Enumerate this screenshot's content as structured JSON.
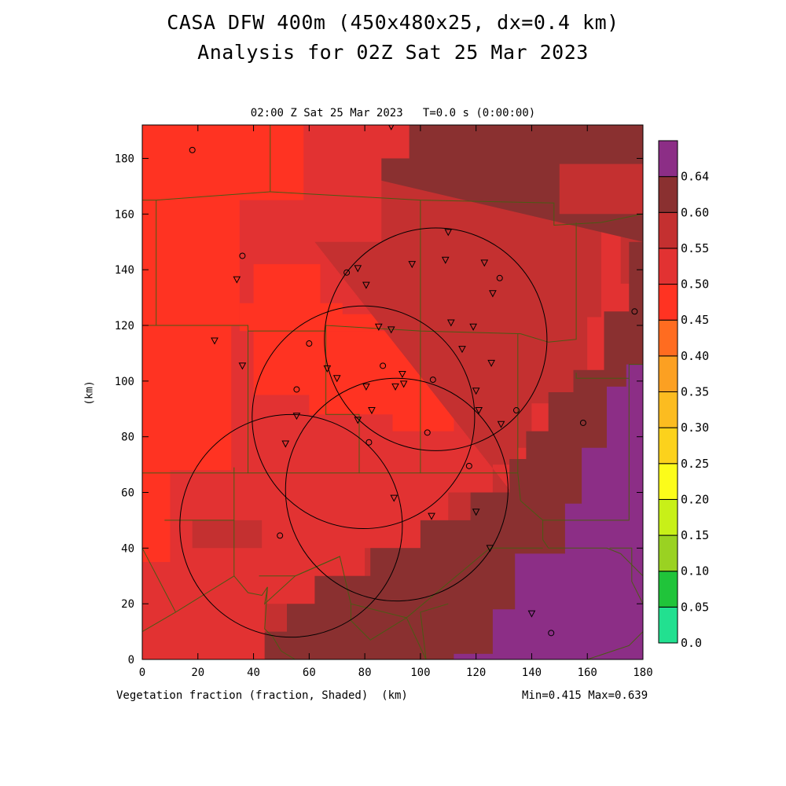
{
  "title_line1": "CASA DFW 400m (450x480x25, dx=0.4 km)",
  "title_line2": "Analysis for 02Z Sat 25 Mar 2023",
  "subtitle": "02:00 Z Sat 25 Mar 2023   T=0.0 s (0:00:00)",
  "footer_left": "Vegetation fraction (fraction, Shaded)  (km)",
  "footer_right": "Min=0.415 Max=0.639",
  "chart_data": {
    "type": "heatmap",
    "xlabel": "(km)",
    "ylabel": "(km)",
    "xlim": [
      0,
      180
    ],
    "ylim": [
      0,
      192
    ],
    "xticks": [
      0,
      20,
      40,
      60,
      80,
      100,
      120,
      140,
      160,
      180
    ],
    "yticks": [
      0,
      20,
      40,
      60,
      80,
      100,
      120,
      140,
      160,
      180
    ],
    "field": "Vegetation fraction",
    "units": "fraction",
    "min": 0.415,
    "max": 0.639,
    "colorbar": {
      "levels": [
        0.0,
        0.05,
        0.1,
        0.15,
        0.2,
        0.25,
        0.3,
        0.35,
        0.4,
        0.45,
        0.5,
        0.55,
        0.6,
        0.64
      ],
      "labels": [
        "0.0",
        "0.05",
        "0.10",
        "0.15",
        "0.20",
        "0.25",
        "0.30",
        "0.35",
        "0.40",
        "0.45",
        "0.50",
        "0.55",
        "0.60",
        "0.64"
      ],
      "colors": [
        "#22e090",
        "#20c43a",
        "#9ad222",
        "#c8f018",
        "#fcfc1a",
        "#fcd21c",
        "#fcbc20",
        "#fca022",
        "#ff6c20",
        "#ff3322",
        "#e23232",
        "#c43030",
        "#8a3030",
        "#8c2e86"
      ]
    },
    "regions": [
      {
        "bin": "0.45-0.50",
        "color": "#e23232",
        "outline": [
          [
            0,
            0
          ],
          [
            180,
            0
          ],
          [
            180,
            192
          ],
          [
            0,
            192
          ]
        ]
      },
      {
        "bin": "0.40-0.45",
        "color": "#ff3322",
        "outline": [
          [
            0,
            35
          ],
          [
            10,
            35
          ],
          [
            10,
            68
          ],
          [
            32,
            68
          ],
          [
            32,
            120
          ],
          [
            35,
            120
          ],
          [
            35,
            165
          ],
          [
            58,
            165
          ],
          [
            58,
            192
          ],
          [
            0,
            192
          ]
        ]
      },
      {
        "bin": "0.40-0.45",
        "color": "#ff3322",
        "outline": [
          [
            35,
            128
          ],
          [
            40,
            128
          ],
          [
            40,
            142
          ],
          [
            64,
            142
          ],
          [
            64,
            128
          ],
          [
            72,
            128
          ],
          [
            72,
            124
          ],
          [
            85,
            124
          ],
          [
            85,
            118
          ],
          [
            115,
            118
          ],
          [
            115,
            130
          ],
          [
            120,
            130
          ],
          [
            120,
            146
          ],
          [
            137,
            146
          ],
          [
            137,
            128
          ],
          [
            128,
            128
          ],
          [
            128,
            118
          ],
          [
            35,
            118
          ]
        ]
      },
      {
        "bin": "0.40-0.45",
        "color": "#ff3322",
        "outline": [
          [
            40,
            118
          ],
          [
            40,
            95
          ],
          [
            60,
            95
          ],
          [
            60,
            88
          ],
          [
            90,
            88
          ],
          [
            90,
            82
          ],
          [
            112,
            82
          ],
          [
            112,
            118
          ]
        ]
      },
      {
        "bin": "0.50-0.55",
        "color": "#c43030",
        "outline": [
          [
            62,
            150
          ],
          [
            86,
            150
          ],
          [
            86,
            172
          ],
          [
            96,
            172
          ],
          [
            96,
            192
          ],
          [
            180,
            192
          ],
          [
            180,
            135
          ],
          [
            172,
            135
          ],
          [
            172,
            155
          ],
          [
            165,
            155
          ],
          [
            165,
            123
          ],
          [
            160,
            123
          ],
          [
            160,
            104
          ],
          [
            158,
            104
          ],
          [
            158,
            96
          ],
          [
            148,
            96
          ],
          [
            148,
            92
          ],
          [
            140,
            92
          ],
          [
            140,
            76
          ],
          [
            135,
            76
          ],
          [
            135,
            70
          ],
          [
            126,
            70
          ],
          [
            126,
            60
          ],
          [
            110,
            60
          ],
          [
            110,
            40
          ],
          [
            80,
            40
          ],
          [
            80,
            30
          ],
          [
            65,
            30
          ],
          [
            65,
            20
          ],
          [
            44,
            20
          ],
          [
            44,
            0
          ],
          [
            180,
            0
          ]
        ]
      },
      {
        "bin": "0.50-0.55",
        "color": "#c43030",
        "outline": [
          [
            18,
            40
          ],
          [
            43,
            40
          ],
          [
            43,
            50
          ],
          [
            18,
            50
          ]
        ]
      },
      {
        "bin": "0.55-0.60",
        "color": "#8a3030",
        "outline": [
          [
            86,
            172
          ],
          [
            86,
            180
          ],
          [
            96,
            180
          ],
          [
            96,
            192
          ],
          [
            180,
            192
          ],
          [
            180,
            178
          ],
          [
            150,
            178
          ],
          [
            150,
            160
          ],
          [
            180,
            160
          ],
          [
            180,
            0
          ],
          [
            44,
            0
          ],
          [
            44,
            10
          ],
          [
            52,
            10
          ],
          [
            52,
            20
          ],
          [
            62,
            20
          ],
          [
            62,
            30
          ],
          [
            82,
            30
          ],
          [
            82,
            40
          ],
          [
            100,
            40
          ],
          [
            100,
            50
          ],
          [
            118,
            50
          ],
          [
            118,
            60
          ],
          [
            132,
            60
          ],
          [
            132,
            72
          ],
          [
            138,
            72
          ],
          [
            138,
            82
          ],
          [
            146,
            82
          ],
          [
            146,
            96
          ],
          [
            155,
            96
          ],
          [
            155,
            104
          ],
          [
            166,
            104
          ],
          [
            166,
            125
          ],
          [
            175,
            125
          ],
          [
            175,
            150
          ],
          [
            180,
            150
          ]
        ]
      },
      {
        "bin": "0.60-0.64",
        "color": "#8c2e86",
        "outline": [
          [
            180,
            0
          ],
          [
            112,
            0
          ],
          [
            112,
            2
          ],
          [
            126,
            2
          ],
          [
            126,
            18
          ],
          [
            134,
            18
          ],
          [
            134,
            38
          ],
          [
            152,
            38
          ],
          [
            152,
            56
          ],
          [
            158,
            56
          ],
          [
            158,
            76
          ],
          [
            167,
            76
          ],
          [
            167,
            98
          ],
          [
            174,
            98
          ],
          [
            174,
            106
          ],
          [
            180,
            106
          ]
        ]
      }
    ],
    "radar_rings_km": [
      {
        "center": [
          105.5,
          115.0
        ],
        "radius": 40
      },
      {
        "center": [
          79.5,
          87.0
        ],
        "radius": 40
      },
      {
        "center": [
          91.5,
          61.0
        ],
        "radius": 40
      },
      {
        "center": [
          53.5,
          48.0
        ],
        "radius": 40
      }
    ],
    "stations_triangle": [
      [
        89.5,
        191.5
      ],
      [
        110,
        153.5
      ],
      [
        109,
        143.5
      ],
      [
        123,
        142.5
      ],
      [
        97,
        142
      ],
      [
        77.5,
        140.5
      ],
      [
        34,
        136.5
      ],
      [
        80.5,
        134.5
      ],
      [
        126,
        131.5
      ],
      [
        111,
        121
      ],
      [
        85,
        119.5
      ],
      [
        89.5,
        118.5
      ],
      [
        119,
        119.5
      ],
      [
        26,
        114.5
      ],
      [
        115,
        111.5
      ],
      [
        125.5,
        106.5
      ],
      [
        36,
        105.5
      ],
      [
        66.5,
        104.5
      ],
      [
        93.5,
        102.5
      ],
      [
        70,
        101
      ],
      [
        94,
        99
      ],
      [
        91,
        98
      ],
      [
        80.5,
        98
      ],
      [
        120,
        96.5
      ],
      [
        55.5,
        87.5
      ],
      [
        82.5,
        89.5
      ],
      [
        121,
        89.5
      ],
      [
        77.5,
        86
      ],
      [
        129,
        84.5
      ],
      [
        51.5,
        77.5
      ],
      [
        90.5,
        58
      ],
      [
        120,
        53
      ],
      [
        104,
        51.5
      ],
      [
        125,
        40
      ],
      [
        140,
        16.5
      ]
    ],
    "stations_circle": [
      [
        18,
        183
      ],
      [
        36,
        145
      ],
      [
        73.5,
        139
      ],
      [
        128.5,
        137
      ],
      [
        177,
        125
      ],
      [
        60,
        113.5
      ],
      [
        86.5,
        105.5
      ],
      [
        104.5,
        100.5
      ],
      [
        55.5,
        97
      ],
      [
        134.5,
        89.5
      ],
      [
        158.5,
        85
      ],
      [
        102.5,
        81.5
      ],
      [
        81.5,
        78
      ],
      [
        117.5,
        69.5
      ],
      [
        49.5,
        44.5
      ],
      [
        147,
        9.5
      ]
    ],
    "boundaries": [
      [
        [
          0,
          165
        ],
        [
          5,
          165
        ],
        [
          5,
          120
        ],
        [
          0,
          120
        ]
      ],
      [
        [
          46,
          192
        ],
        [
          46,
          168
        ],
        [
          100,
          165
        ],
        [
          148,
          164
        ],
        [
          148,
          156
        ],
        [
          165,
          157
        ],
        [
          180,
          160
        ]
      ],
      [
        [
          5,
          165
        ],
        [
          46,
          168
        ]
      ],
      [
        [
          5,
          120
        ],
        [
          38,
          120
        ],
        [
          38,
          118
        ],
        [
          66,
          118
        ],
        [
          66,
          120
        ],
        [
          100,
          118
        ],
        [
          136,
          117
        ],
        [
          146,
          114
        ],
        [
          156,
          115
        ],
        [
          156,
          157
        ]
      ],
      [
        [
          38,
          118
        ],
        [
          38,
          67
        ],
        [
          0,
          67
        ]
      ],
      [
        [
          66,
          118
        ],
        [
          66,
          88
        ],
        [
          78,
          88
        ],
        [
          78,
          67
        ],
        [
          38,
          67
        ]
      ],
      [
        [
          100,
          165
        ],
        [
          100,
          118
        ]
      ],
      [
        [
          78,
          67
        ],
        [
          100,
          67
        ],
        [
          100,
          118
        ]
      ],
      [
        [
          100,
          67
        ],
        [
          135,
          67
        ],
        [
          135,
          117
        ]
      ],
      [
        [
          135,
          67
        ],
        [
          136,
          57
        ],
        [
          144,
          50
        ],
        [
          144,
          43
        ],
        [
          146,
          40
        ],
        [
          167,
          40
        ],
        [
          172,
          38
        ],
        [
          178,
          32
        ],
        [
          180,
          30
        ]
      ],
      [
        [
          144,
          50
        ],
        [
          160,
          50
        ],
        [
          175,
          50
        ],
        [
          175,
          106
        ],
        [
          180,
          106
        ]
      ],
      [
        [
          156,
          103
        ],
        [
          156,
          101
        ],
        [
          175,
          101
        ]
      ],
      [
        [
          8,
          50
        ],
        [
          33,
          50
        ],
        [
          33,
          69
        ]
      ],
      [
        [
          0,
          40
        ],
        [
          12,
          17
        ],
        [
          33,
          30
        ],
        [
          33,
          50
        ]
      ],
      [
        [
          12,
          17
        ],
        [
          0,
          10
        ]
      ],
      [
        [
          33,
          30
        ],
        [
          38,
          24
        ],
        [
          43,
          23
        ],
        [
          45,
          26
        ],
        [
          44,
          20
        ],
        [
          55,
          30
        ],
        [
          71,
          37
        ],
        [
          75,
          20
        ],
        [
          95,
          15
        ],
        [
          125,
          40
        ],
        [
          144,
          40
        ]
      ],
      [
        [
          45,
          26
        ],
        [
          44,
          11
        ],
        [
          47,
          8
        ],
        [
          50,
          3
        ],
        [
          55,
          0
        ]
      ],
      [
        [
          71,
          37
        ],
        [
          55,
          30
        ],
        [
          42,
          30
        ]
      ],
      [
        [
          75,
          20
        ],
        [
          75,
          14
        ],
        [
          82,
          7
        ],
        [
          95,
          15
        ]
      ],
      [
        [
          95,
          15
        ],
        [
          102,
          0
        ]
      ],
      [
        [
          102,
          0
        ],
        [
          100,
          17
        ],
        [
          110,
          20
        ]
      ],
      [
        [
          168,
          40
        ],
        [
          176,
          40
        ],
        [
          176,
          28
        ],
        [
          180,
          20
        ]
      ],
      [
        [
          160,
          0
        ],
        [
          175,
          5
        ],
        [
          180,
          10
        ]
      ],
      [
        [
          110,
          0
        ],
        [
          102,
          0
        ]
      ]
    ]
  }
}
